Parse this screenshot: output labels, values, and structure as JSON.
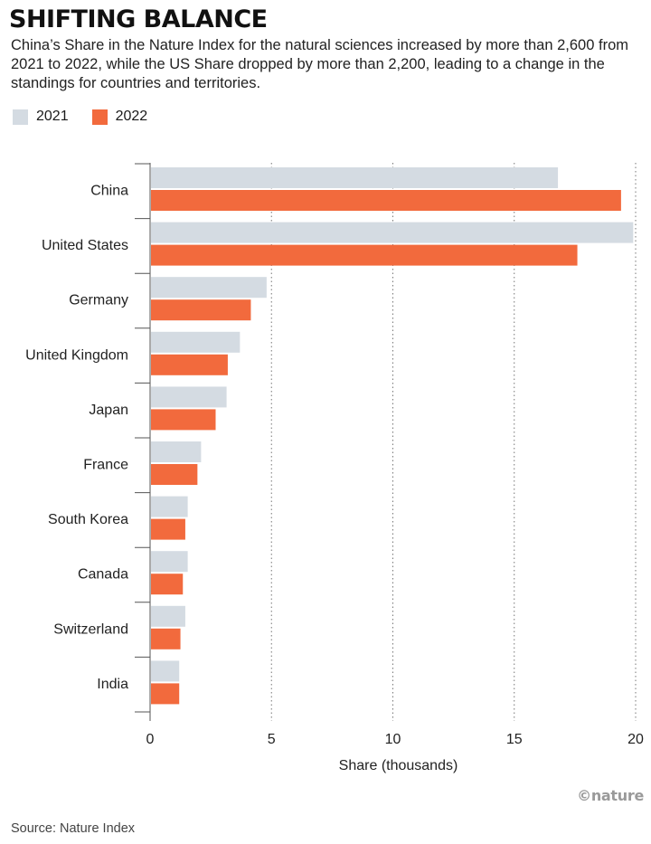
{
  "header": {
    "title": "SHIFTING BALANCE",
    "subtitle": "China’s Share in the Nature Index for the natural sciences increased by more than 2,600 from 2021 to 2022, while the US Share dropped by more than 2,200, leading to a change in the standings for countries and territories."
  },
  "footer": {
    "logo_text": "©nature",
    "source": "Source: Nature Index"
  },
  "colors": {
    "series_2021": "#d4dbe2",
    "series_2022": "#f26a3d",
    "grid": "#777777",
    "axis": "#555555"
  },
  "chart_data": {
    "type": "bar",
    "orientation": "horizontal",
    "categories": [
      "China",
      "United States",
      "Germany",
      "United Kingdom",
      "Japan",
      "France",
      "South Korea",
      "Canada",
      "Switzerland",
      "India"
    ],
    "series": [
      {
        "name": "2021",
        "values": [
          16.8,
          19.9,
          4.8,
          3.7,
          3.15,
          2.1,
          1.55,
          1.55,
          1.45,
          1.2
        ]
      },
      {
        "name": "2022",
        "values": [
          19.4,
          17.6,
          4.15,
          3.2,
          2.7,
          1.95,
          1.45,
          1.35,
          1.25,
          1.2
        ]
      }
    ],
    "xlabel": "Share (thousands)",
    "xlim": [
      0,
      20
    ],
    "xticks": [
      0,
      5,
      10,
      15,
      20
    ],
    "grid": "vertical dotted",
    "legend_position": "top-left"
  }
}
